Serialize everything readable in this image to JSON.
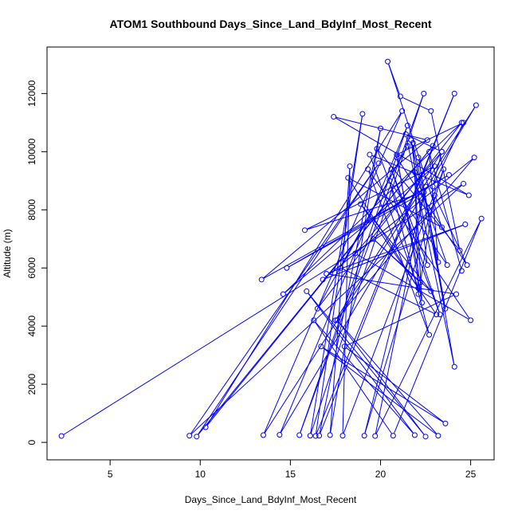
{
  "chart_data": {
    "type": "line",
    "title": "ATOM1 Southbound Days_Since_Land_BdyInf_Most_Recent",
    "xlabel": "Days_Since_Land_BdyInf_Most_Recent",
    "ylabel": "Altitude (m)",
    "xlim": [
      1.5,
      26.3
    ],
    "ylim": [
      -600,
      13600
    ],
    "xticks": [
      5,
      10,
      15,
      20,
      25
    ],
    "yticks": [
      0,
      2000,
      4000,
      6000,
      8000,
      10000,
      12000
    ],
    "grid": false,
    "markers": "open-circle",
    "series_color": "#0000ff",
    "series": [
      {
        "x": [
          2.3,
          24.6,
          9.4,
          19.9,
          9.8,
          22.9,
          10.3,
          21.2,
          13.5,
          25.3,
          14.4,
          21.5,
          15.5,
          22.4,
          16.1,
          19.0,
          16.4,
          24.1,
          16.6,
          20.0,
          17.2,
          18.3,
          17.9,
          23.5,
          19.1,
          22.5,
          19.7,
          25.6,
          20.7,
          16.3,
          21.9,
          15.9,
          22.5,
          17.6,
          23.2,
          16.7,
          23.6,
          18.0,
          24.2,
          17.0,
          24.7,
          16.8,
          25.2,
          17.5,
          23.4,
          18.6,
          25.0,
          19.3,
          22.7,
          20.5,
          23.7,
          21.9,
          22.1,
          23.0,
          24.8,
          20.9,
          22.2,
          19.6,
          22.8,
          18.9,
          23.1,
          17.8,
          21.5,
          16.5,
          24.5,
          14.6,
          23.0,
          15.8,
          22.4,
          14.8,
          23.8,
          13.4,
          22.6,
          17.4,
          24.9,
          19.4,
          22.1,
          18.2,
          23.4,
          20.4,
          21.1,
          22.8,
          24.4,
          19.8,
          23.3,
          20.6,
          22.6,
          21.7,
          23.6,
          22.1,
          24.1,
          21.4,
          23.4,
          22.9,
          24.6,
          20.9,
          22.3,
          21.8,
          23.2,
          22.7,
          24.5
        ],
        "y": [
          220,
          8900,
          230,
          9600,
          200,
          10200,
          520,
          11400,
          250,
          11600,
          260,
          10900,
          250,
          12000,
          230,
          11300,
          220,
          12000,
          230,
          10800,
          250,
          9500,
          230,
          9400,
          230,
          8800,
          220,
          7700,
          230,
          4200,
          250,
          5200,
          200,
          4200,
          230,
          3300,
          650,
          3300,
          5100,
          5800,
          7500,
          5600,
          9800,
          4200,
          10000,
          6500,
          4200,
          9400,
          3700,
          9000,
          6100,
          9300,
          5100,
          8500,
          6100,
          9800,
          5500,
          7000,
          5200,
          8200,
          4400,
          6000,
          10200,
          4600,
          11000,
          5100,
          9500,
          7300,
          8600,
          6000,
          9200,
          5600,
          10400,
          11200,
          8500,
          9900,
          5300,
          9100,
          7400,
          13100,
          11900,
          11400,
          6600,
          10100,
          4400,
          9400,
          6100,
          10400,
          4600,
          9800,
          2600,
          10600,
          10000,
          8800,
          11000,
          9900,
          4800,
          10300,
          6200,
          10000,
          5900
        ]
      }
    ]
  }
}
